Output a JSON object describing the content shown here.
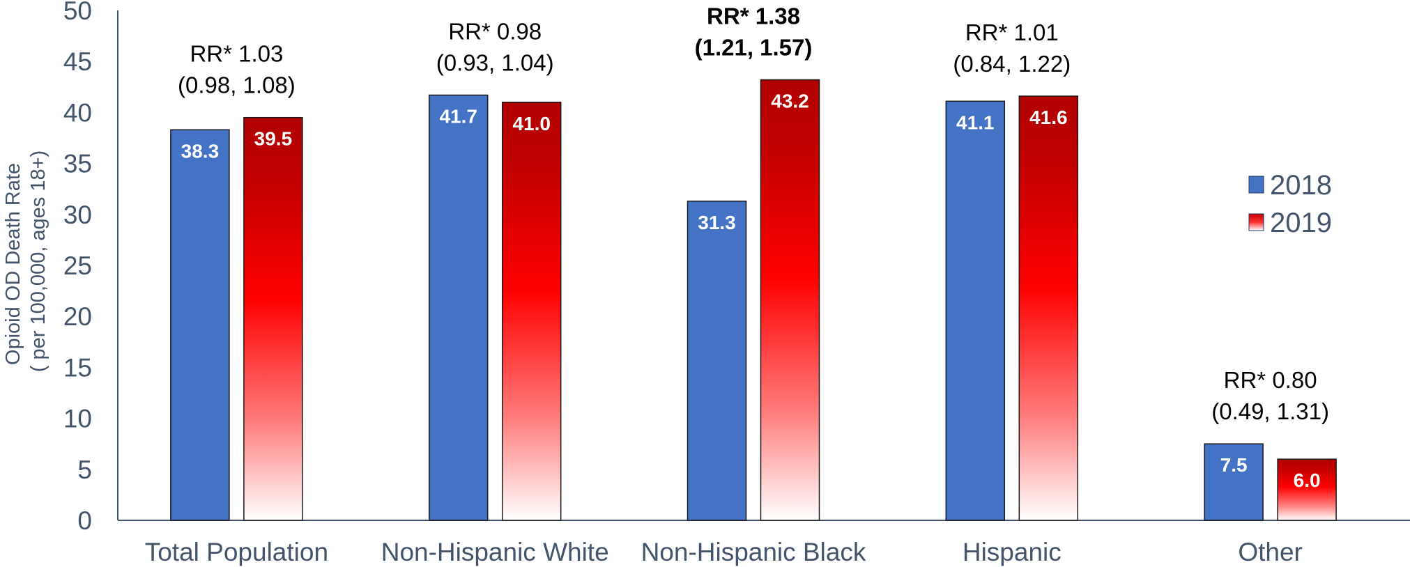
{
  "chart_data": {
    "type": "bar",
    "title": "",
    "ylabel_lines": [
      "Opioid OD Death Rate",
      "( per 100,000, ages 18+)"
    ],
    "xlabel": "",
    "ylim": [
      0,
      50
    ],
    "yticks": [
      0,
      5,
      10,
      15,
      20,
      25,
      30,
      35,
      40,
      45,
      50
    ],
    "categories": [
      "Total Population",
      "Non-Hispanic White",
      "Non-Hispanic Black",
      "Hispanic",
      "Other"
    ],
    "series": [
      {
        "name": "2018",
        "color": "#4472c4",
        "values": [
          38.3,
          41.7,
          31.3,
          41.1,
          7.5
        ],
        "labels": [
          "38.3",
          "41.7",
          "31.3",
          "41.1",
          "7.5"
        ]
      },
      {
        "name": "2019",
        "color": "#c00000",
        "values": [
          39.5,
          41.0,
          43.2,
          41.6,
          6.0
        ],
        "labels": [
          "39.5",
          "41.0",
          "43.2",
          "41.6",
          "6.0"
        ]
      }
    ],
    "annotations": [
      {
        "line1": "RR* 1.03",
        "line2": "(0.98, 1.08)",
        "bold": false
      },
      {
        "line1": "RR* 0.98",
        "line2": "(0.93, 1.04)",
        "bold": false
      },
      {
        "line1": "RR* 1.38",
        "line2": "(1.21, 1.57)",
        "bold": true
      },
      {
        "line1": "RR* 1.01",
        "line2": "(0.84, 1.22)",
        "bold": false
      },
      {
        "line1": "RR* 0.80",
        "line2": "(0.49, 1.31)",
        "bold": false
      }
    ],
    "legend": {
      "position": "right",
      "items": [
        "2018",
        "2019"
      ]
    },
    "grid": false
  }
}
